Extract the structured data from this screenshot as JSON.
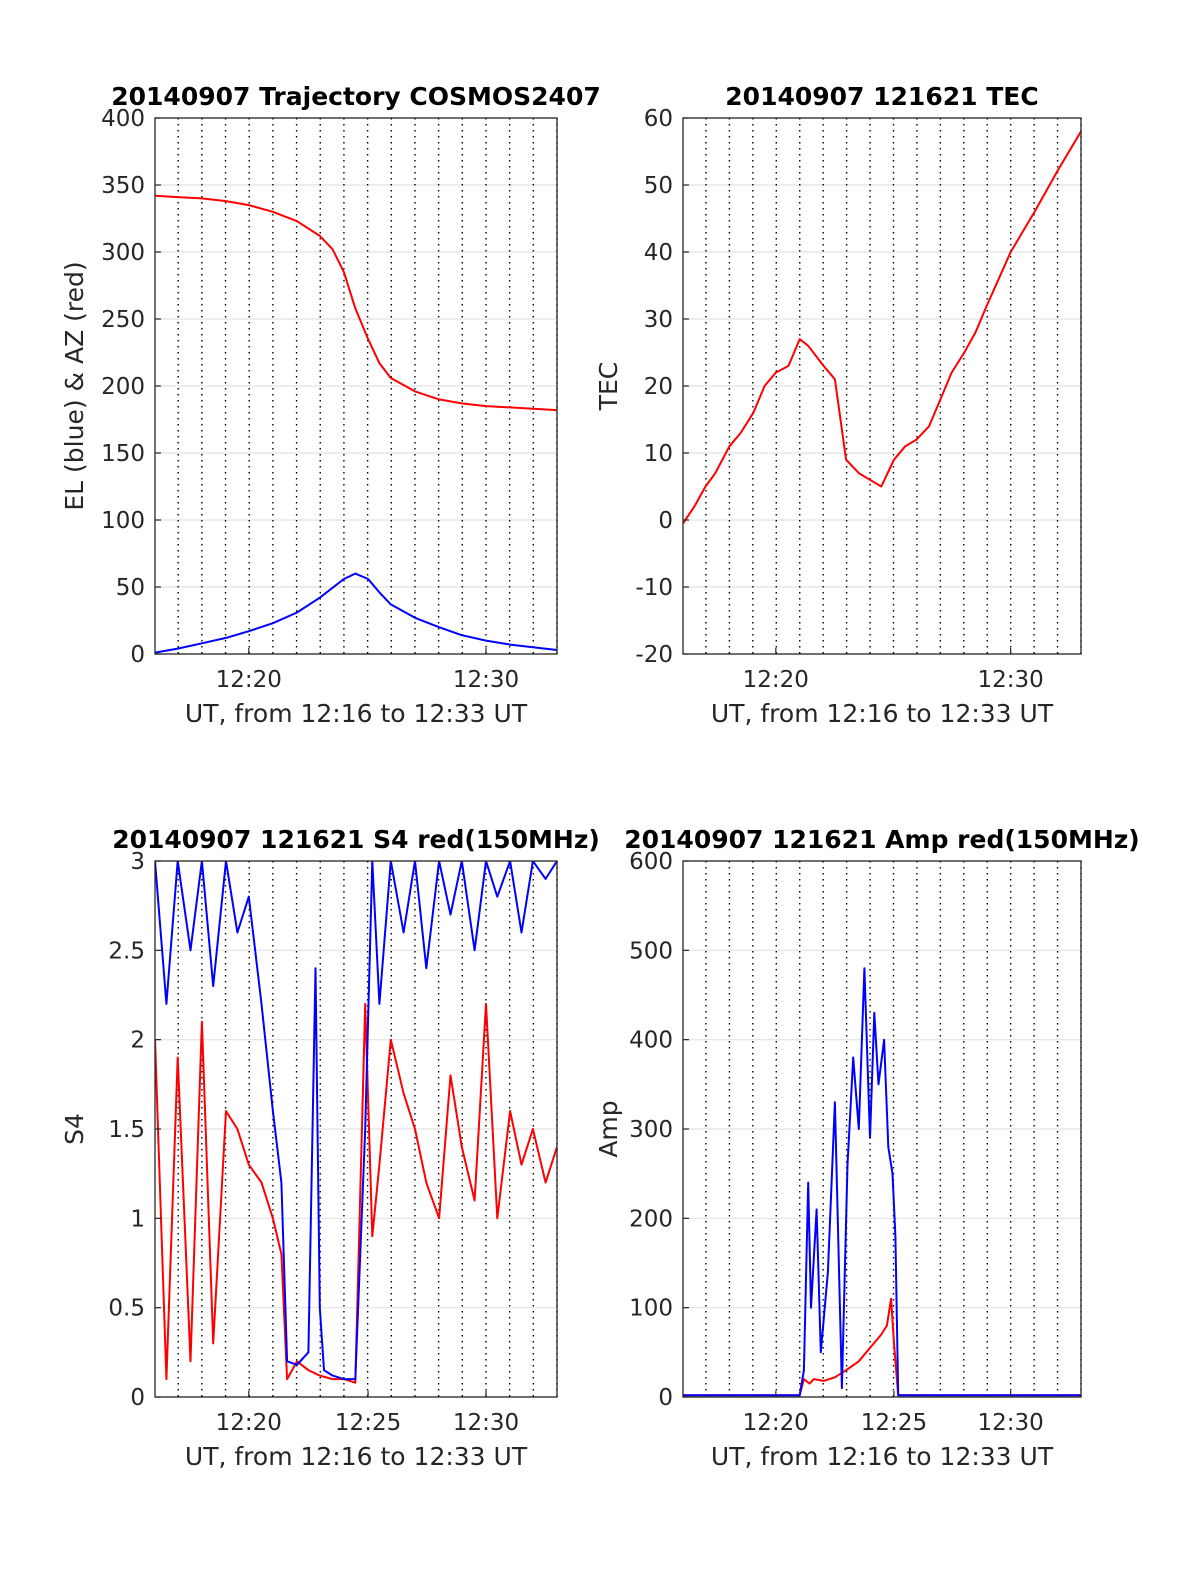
{
  "chart_data": [
    {
      "type": "line",
      "title": "20140907 Trajectory COSMOS2407",
      "xlabel": "UT, from 12:16 to 12:33 UT",
      "ylabel": "EL (blue) & AZ (red)",
      "xlim": [
        12.267,
        12.55
      ],
      "ylim": [
        0,
        400
      ],
      "x_ticks": [
        {
          "x": 12.333,
          "label": "12:20"
        },
        {
          "x": 12.5,
          "label": "12:30"
        }
      ],
      "y_ticks": [
        0,
        50,
        100,
        150,
        200,
        250,
        300,
        350,
        400
      ],
      "grid": true,
      "series": [
        {
          "color": "#ff0000",
          "x": [
            12.267,
            12.283,
            12.3,
            12.317,
            12.333,
            12.35,
            12.367,
            12.383,
            12.392,
            12.4,
            12.408,
            12.417,
            12.425,
            12.433,
            12.45,
            12.467,
            12.483,
            12.5,
            12.517,
            12.533,
            12.55
          ],
          "y": [
            342,
            341,
            340,
            338,
            335,
            330,
            323,
            312,
            302,
            285,
            258,
            235,
            217,
            206,
            196,
            190,
            187,
            185,
            184,
            183,
            182
          ]
        },
        {
          "color": "#0000ff",
          "x": [
            12.267,
            12.283,
            12.3,
            12.317,
            12.333,
            12.35,
            12.367,
            12.383,
            12.4,
            12.408,
            12.417,
            12.425,
            12.433,
            12.45,
            12.467,
            12.483,
            12.5,
            12.517,
            12.533,
            12.55
          ],
          "y": [
            1,
            4,
            8,
            12,
            17,
            23,
            31,
            42,
            56,
            60,
            56,
            46,
            37,
            27,
            20,
            14,
            10,
            7,
            5,
            3
          ]
        }
      ]
    },
    {
      "type": "line",
      "title": "20140907 121621 TEC",
      "xlabel": "UT, from 12:16 to 12:33 UT",
      "ylabel": "TEC",
      "xlim": [
        12.267,
        12.55
      ],
      "ylim": [
        -20,
        60
      ],
      "x_ticks": [
        {
          "x": 12.333,
          "label": "12:20"
        },
        {
          "x": 12.5,
          "label": "12:30"
        }
      ],
      "y_ticks": [
        -20,
        -10,
        0,
        10,
        20,
        30,
        40,
        50,
        60
      ],
      "grid": true,
      "series": [
        {
          "color": "#ff0000",
          "x": [
            12.267,
            12.275,
            12.283,
            12.29,
            12.3,
            12.308,
            12.317,
            12.325,
            12.333,
            12.342,
            12.35,
            12.356,
            12.367,
            12.375,
            12.383,
            12.392,
            12.4,
            12.408,
            12.417,
            12.425,
            12.433,
            12.442,
            12.45,
            12.458,
            12.467,
            12.475,
            12.483,
            12.5,
            12.517,
            12.533,
            12.55
          ],
          "y": [
            -0.5,
            2,
            5,
            7,
            11,
            13,
            16,
            20,
            22,
            23,
            27,
            26,
            23,
            21,
            9,
            7,
            6,
            5,
            9,
            11,
            12,
            14,
            18,
            22,
            25,
            28,
            32,
            40,
            46,
            52,
            58
          ]
        }
      ]
    },
    {
      "type": "line",
      "title": "20140907 121621 S4 red(150MHz)",
      "xlabel": "UT, from 12:16 to 12:33 UT",
      "ylabel": "S4",
      "xlim": [
        12.267,
        12.55
      ],
      "ylim": [
        0,
        3
      ],
      "x_ticks": [
        {
          "x": 12.333,
          "label": "12:20"
        },
        {
          "x": 12.417,
          "label": "12:25"
        },
        {
          "x": 12.5,
          "label": "12:30"
        }
      ],
      "y_ticks": [
        0,
        0.5,
        1,
        1.5,
        2,
        2.5,
        3
      ],
      "grid": true,
      "series": [
        {
          "color": "#ff0000",
          "x": [
            12.267,
            12.275,
            12.283,
            12.292,
            12.3,
            12.308,
            12.317,
            12.325,
            12.333,
            12.342,
            12.35,
            12.356,
            12.36,
            12.367,
            12.375,
            12.383,
            12.392,
            12.4,
            12.408,
            12.415,
            12.42,
            12.425,
            12.433,
            12.442,
            12.45,
            12.458,
            12.467,
            12.475,
            12.483,
            12.492,
            12.5,
            12.508,
            12.517,
            12.525,
            12.533,
            12.542,
            12.55
          ],
          "y": [
            2.0,
            0.1,
            1.9,
            0.2,
            2.1,
            0.3,
            1.6,
            1.5,
            1.3,
            1.2,
            1.0,
            0.8,
            0.1,
            0.2,
            0.15,
            0.12,
            0.1,
            0.1,
            0.08,
            2.2,
            0.9,
            1.3,
            2.0,
            1.7,
            1.5,
            1.2,
            1.0,
            1.8,
            1.4,
            1.1,
            2.2,
            1.0,
            1.6,
            1.3,
            1.5,
            1.2,
            1.4
          ]
        },
        {
          "color": "#0000ff",
          "x": [
            12.267,
            12.275,
            12.283,
            12.292,
            12.3,
            12.308,
            12.317,
            12.325,
            12.333,
            12.342,
            12.35,
            12.356,
            12.36,
            12.367,
            12.375,
            12.38,
            12.383,
            12.386,
            12.392,
            12.4,
            12.408,
            12.415,
            12.42,
            12.425,
            12.433,
            12.442,
            12.45,
            12.458,
            12.467,
            12.475,
            12.483,
            12.492,
            12.5,
            12.508,
            12.517,
            12.525,
            12.533,
            12.542,
            12.55
          ],
          "y": [
            3.0,
            2.2,
            3.0,
            2.5,
            3.0,
            2.3,
            3.0,
            2.6,
            2.8,
            2.2,
            1.6,
            1.2,
            0.2,
            0.18,
            0.25,
            2.4,
            0.5,
            0.15,
            0.12,
            0.1,
            0.1,
            1.5,
            3.0,
            2.2,
            3.0,
            2.6,
            3.0,
            2.4,
            3.0,
            2.7,
            3.0,
            2.5,
            3.0,
            2.8,
            3.0,
            2.6,
            3.0,
            2.9,
            3.0
          ]
        }
      ]
    },
    {
      "type": "line",
      "title": "20140907 121621 Amp red(150MHz)",
      "xlabel": "UT, from 12:16 to 12:33 UT",
      "ylabel": "Amp",
      "xlim": [
        12.267,
        12.55
      ],
      "ylim": [
        0,
        600
      ],
      "x_ticks": [
        {
          "x": 12.333,
          "label": "12:20"
        },
        {
          "x": 12.417,
          "label": "12:25"
        },
        {
          "x": 12.5,
          "label": "12:30"
        }
      ],
      "y_ticks": [
        0,
        100,
        200,
        300,
        400,
        500,
        600
      ],
      "grid": true,
      "series": [
        {
          "color": "#ff0000",
          "x": [
            12.267,
            12.35,
            12.353,
            12.357,
            12.36,
            12.367,
            12.375,
            12.383,
            12.392,
            12.4,
            12.408,
            12.412,
            12.415,
            12.417,
            12.42,
            12.55
          ],
          "y": [
            2,
            2,
            20,
            15,
            20,
            18,
            22,
            30,
            40,
            55,
            70,
            80,
            110,
            60,
            2,
            2
          ]
        },
        {
          "color": "#0000ff",
          "x": [
            12.267,
            12.35,
            12.353,
            12.356,
            12.358,
            12.362,
            12.365,
            12.37,
            12.375,
            12.38,
            12.384,
            12.388,
            12.392,
            12.396,
            12.4,
            12.403,
            12.406,
            12.41,
            12.413,
            12.416,
            12.418,
            12.42,
            12.55
          ],
          "y": [
            2,
            2,
            30,
            240,
            100,
            210,
            50,
            140,
            330,
            10,
            260,
            380,
            300,
            480,
            290,
            430,
            350,
            400,
            280,
            250,
            180,
            2,
            2
          ]
        }
      ]
    }
  ]
}
